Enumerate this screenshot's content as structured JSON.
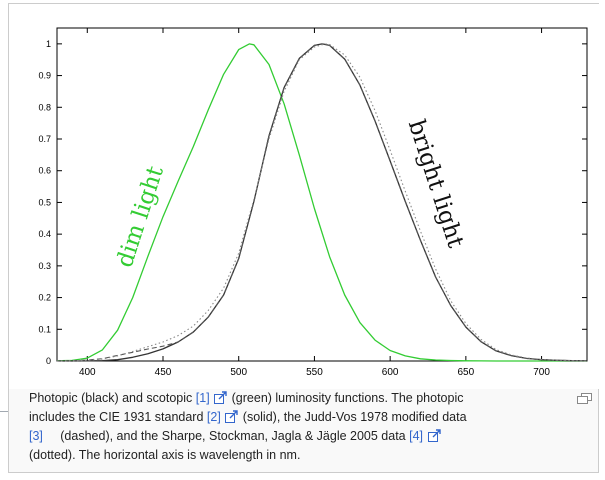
{
  "chart_data": {
    "type": "line",
    "xlim": [
      380,
      730
    ],
    "ylim": [
      0,
      1.05
    ],
    "x_ticks": [
      400,
      450,
      500,
      550,
      600,
      650,
      700
    ],
    "y_ticks": [
      0,
      0.1,
      0.2,
      0.3,
      0.4,
      0.5,
      0.6,
      0.7,
      0.8,
      0.9,
      1
    ],
    "x_tick_labels": [
      "400",
      "450",
      "500",
      "550",
      "600",
      "650",
      "700"
    ],
    "y_tick_labels": [
      "0",
      "0.1",
      "0.2",
      "0.3",
      "0.4",
      "0.5",
      "0.6",
      "0.7",
      "0.8",
      "0.9",
      "1"
    ],
    "grid": false,
    "annotations": {
      "scotopic": "dim light",
      "photopic": "bright light"
    },
    "series": [
      {
        "color": "#33cc33",
        "style": "solid",
        "x": [
          380,
          390,
          400,
          410,
          420,
          430,
          440,
          450,
          460,
          470,
          480,
          490,
          500,
          507,
          510,
          520,
          530,
          540,
          550,
          560,
          570,
          580,
          590,
          600,
          610,
          620,
          630,
          640,
          650,
          660,
          670,
          680,
          700,
          730
        ],
        "y": [
          0.0006,
          0.002,
          0.009,
          0.035,
          0.097,
          0.2,
          0.33,
          0.455,
          0.567,
          0.676,
          0.793,
          0.904,
          0.982,
          1.0,
          0.997,
          0.935,
          0.811,
          0.65,
          0.481,
          0.329,
          0.208,
          0.121,
          0.066,
          0.033,
          0.016,
          0.007,
          0.003,
          0.0015,
          0.0007,
          0.0003,
          0.0001,
          0.0001,
          0,
          0
        ]
      },
      {
        "color": "#333333",
        "style": "solid",
        "x": [
          380,
          390,
          400,
          410,
          420,
          430,
          440,
          450,
          460,
          470,
          480,
          490,
          500,
          510,
          520,
          530,
          540,
          550,
          555,
          560,
          570,
          580,
          590,
          600,
          610,
          620,
          630,
          640,
          650,
          660,
          670,
          680,
          690,
          700,
          710,
          720,
          730
        ],
        "y": [
          4e-05,
          0.00012,
          0.0004,
          0.0012,
          0.004,
          0.0116,
          0.023,
          0.038,
          0.06,
          0.091,
          0.139,
          0.208,
          0.323,
          0.503,
          0.71,
          0.862,
          0.954,
          0.995,
          1.0,
          0.995,
          0.952,
          0.87,
          0.757,
          0.631,
          0.503,
          0.381,
          0.265,
          0.175,
          0.107,
          0.061,
          0.032,
          0.017,
          0.0082,
          0.0041,
          0.0021,
          0.001,
          0.0005
        ]
      },
      {
        "color": "#555555",
        "style": "dashed",
        "x": [
          380,
          390,
          400,
          410,
          420,
          430,
          440,
          450,
          460,
          470,
          480,
          490,
          500,
          510,
          520,
          530,
          540,
          550,
          556,
          560,
          570,
          580,
          590,
          600,
          610,
          620,
          630,
          640,
          650,
          660,
          670,
          680,
          690,
          700,
          710,
          720,
          730
        ],
        "y": [
          0.0002,
          0.0008,
          0.0028,
          0.0074,
          0.0175,
          0.0273,
          0.0379,
          0.0468,
          0.06,
          0.091,
          0.139,
          0.208,
          0.323,
          0.503,
          0.71,
          0.862,
          0.954,
          0.995,
          1.0,
          0.995,
          0.952,
          0.87,
          0.757,
          0.631,
          0.503,
          0.381,
          0.265,
          0.175,
          0.107,
          0.061,
          0.032,
          0.017,
          0.0082,
          0.0041,
          0.0021,
          0.001,
          0.0005
        ]
      },
      {
        "color": "#888888",
        "style": "dotted",
        "x": [
          380,
          390,
          400,
          410,
          420,
          430,
          440,
          450,
          460,
          470,
          480,
          490,
          500,
          510,
          520,
          530,
          540,
          550,
          557,
          560,
          570,
          580,
          590,
          600,
          610,
          620,
          630,
          640,
          650,
          660,
          670,
          680,
          690,
          700,
          710,
          720,
          730
        ],
        "y": [
          0.0001,
          0.0005,
          0.002,
          0.006,
          0.016,
          0.03,
          0.045,
          0.06,
          0.08,
          0.11,
          0.16,
          0.23,
          0.34,
          0.51,
          0.7,
          0.85,
          0.95,
          0.99,
          1.0,
          0.998,
          0.965,
          0.895,
          0.79,
          0.665,
          0.535,
          0.41,
          0.29,
          0.19,
          0.118,
          0.068,
          0.036,
          0.019,
          0.0095,
          0.0047,
          0.0024,
          0.0012,
          0.0006
        ]
      }
    ]
  },
  "caption": {
    "line1_text": "Photopic (black) and scotopic ",
    "ref1": "[1]",
    "line1_after": " (green) luminosity functions. The photopic",
    "line2_text": "includes the CIE 1931 standard ",
    "ref2": "[2]",
    "line2_after": " (solid), the Judd-Vos 1978 modified data",
    "ref3": "[3]",
    "line3_mid": "     (dashed), and the Sharpe, Stockman, Jagla & Jägle 2005 data ",
    "ref4": "[4]",
    "line4_text": "(dotted). The horizontal axis is wavelength in nm."
  },
  "icons": {
    "external_link": "external-link-icon",
    "magnify": "magnify-icon"
  },
  "colors": {
    "link": "#3366cc",
    "scotopic": "#33cc33",
    "photopic": "#333333"
  }
}
